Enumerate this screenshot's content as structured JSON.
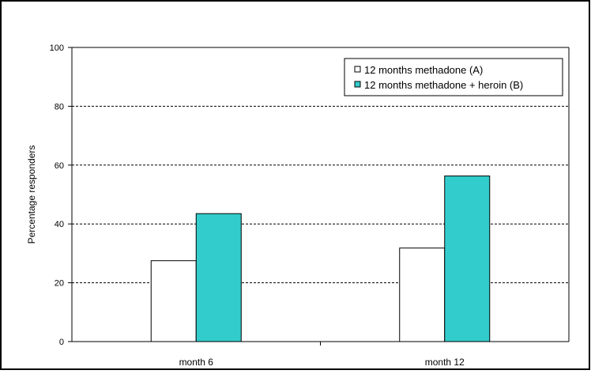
{
  "chart_data": {
    "type": "bar",
    "categories": [
      "month 6",
      "month 12"
    ],
    "series": [
      {
        "name": "12 months methadone (A)",
        "values": [
          27.5,
          31.8
        ],
        "color": "#FFFFFF"
      },
      {
        "name": "12 months methadone + heroin (B)",
        "values": [
          43.5,
          56.3
        ],
        "color": "#33CCCC"
      }
    ],
    "ylabel": "Percentage responders",
    "xlabel": "",
    "ylim": [
      0,
      100
    ],
    "yticks": [
      0,
      20,
      40,
      60,
      80,
      100
    ],
    "grid": true,
    "grid_style": "dashed",
    "legend_position": "top-right"
  }
}
